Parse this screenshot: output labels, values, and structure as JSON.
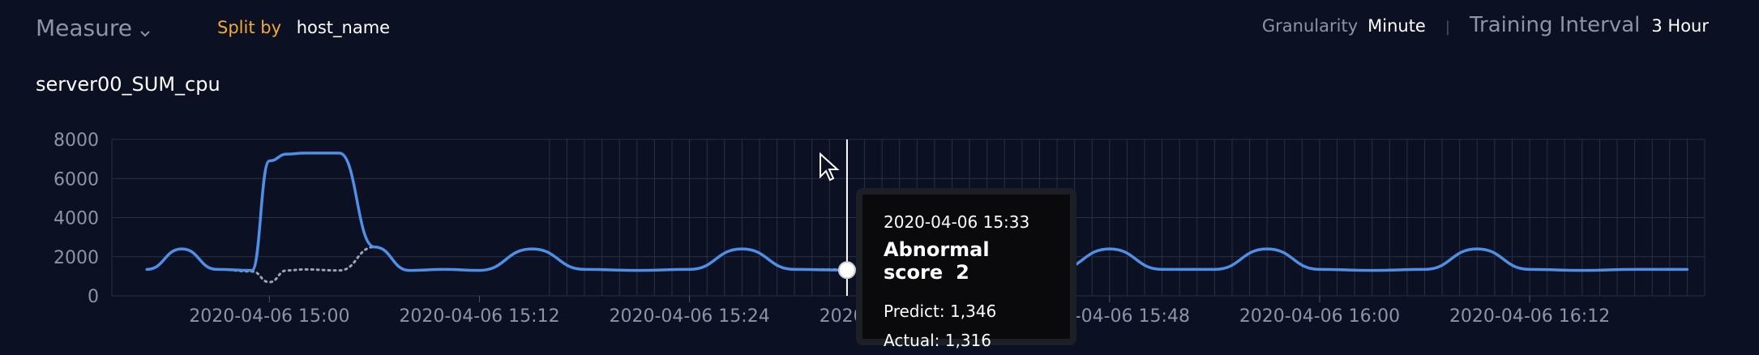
{
  "header": {
    "measure_label": "Measure",
    "split_by_label": "Split by",
    "split_by_value": "host_name",
    "granularity_label": "Granularity",
    "granularity_value": "Minute",
    "training_interval_label": "Training Interval",
    "training_interval_value": "3 Hour"
  },
  "chart_title": "server00_SUM_cpu",
  "tooltip": {
    "time": "2020-04-06 15:33",
    "abnormal_label": "Abnormal score",
    "abnormal_value": "2",
    "predict_label": "Predict: 1,346",
    "actual_label": "Actual: 1,316"
  },
  "colors": {
    "accent": "#f2a83b",
    "actual_line": "#4f8fe6",
    "predict_line": "#9aa3b8",
    "grid": "#2a3042"
  },
  "chart_data": {
    "type": "line",
    "title": "server00_SUM_cpu",
    "ylim": [
      0,
      8000
    ],
    "y_ticks": [
      0,
      2000,
      4000,
      6000,
      8000
    ],
    "x_tick_labels": [
      "2020-04-06 15:00",
      "2020-04-06 15:12",
      "2020-04-06 15:24",
      "2020-04-06 15:36",
      "2020-04-06 15:48",
      "2020-04-06 16:00",
      "2020-04-06 16:12"
    ],
    "grid": true,
    "series": [
      {
        "name": "Actual",
        "x": [
          "2020-04-06 14:53",
          "2020-04-06 14:55",
          "2020-04-06 14:57",
          "2020-04-06 14:59",
          "2020-04-06 15:00",
          "2020-04-06 15:01",
          "2020-04-06 15:02",
          "2020-04-06 15:04",
          "2020-04-06 15:06",
          "2020-04-06 15:08",
          "2020-04-06 15:10",
          "2020-04-06 15:12",
          "2020-04-06 15:15",
          "2020-04-06 15:18",
          "2020-04-06 15:21",
          "2020-04-06 15:24",
          "2020-04-06 15:27",
          "2020-04-06 15:30",
          "2020-04-06 15:33",
          "2020-04-06 15:36",
          "2020-04-06 15:39",
          "2020-04-06 15:42",
          "2020-04-06 15:45",
          "2020-04-06 15:48",
          "2020-04-06 15:51",
          "2020-04-06 15:54",
          "2020-04-06 15:57",
          "2020-04-06 16:00",
          "2020-04-06 16:03",
          "2020-04-06 16:06",
          "2020-04-06 16:09",
          "2020-04-06 16:12",
          "2020-04-06 16:15",
          "2020-04-06 16:18",
          "2020-04-06 16:21"
        ],
        "values": [
          1350,
          2400,
          1350,
          1300,
          6900,
          7250,
          7300,
          7300,
          2500,
          1300,
          1350,
          1300,
          2400,
          1350,
          1300,
          1350,
          2400,
          1350,
          1316,
          2400,
          1350,
          1300,
          1350,
          2400,
          1350,
          1350,
          2400,
          1350,
          1300,
          1350,
          2400,
          1350,
          1300,
          1350,
          1350
        ]
      },
      {
        "name": "Predict",
        "x": [
          "2020-04-06 14:53",
          "2020-04-06 14:55",
          "2020-04-06 14:57",
          "2020-04-06 14:59",
          "2020-04-06 15:00",
          "2020-04-06 15:01",
          "2020-04-06 15:02",
          "2020-04-06 15:04",
          "2020-04-06 15:06",
          "2020-04-06 15:08",
          "2020-04-06 15:10",
          "2020-04-06 15:12",
          "2020-04-06 15:15",
          "2020-04-06 15:18",
          "2020-04-06 15:21",
          "2020-04-06 15:24",
          "2020-04-06 15:27",
          "2020-04-06 15:30",
          "2020-04-06 15:33",
          "2020-04-06 15:36",
          "2020-04-06 15:39",
          "2020-04-06 15:42",
          "2020-04-06 15:45",
          "2020-04-06 15:48",
          "2020-04-06 15:51",
          "2020-04-06 15:54",
          "2020-04-06 15:57",
          "2020-04-06 16:00",
          "2020-04-06 16:03",
          "2020-04-06 16:06",
          "2020-04-06 16:09",
          "2020-04-06 16:12",
          "2020-04-06 16:15",
          "2020-04-06 16:18",
          "2020-04-06 16:21"
        ],
        "values": [
          1350,
          2400,
          1350,
          1250,
          700,
          1300,
          1350,
          1300,
          2500,
          1300,
          1350,
          1300,
          2400,
          1350,
          1300,
          1350,
          2400,
          1350,
          1346,
          2400,
          1350,
          1300,
          1350,
          2400,
          1350,
          1350,
          2400,
          1350,
          1300,
          1350,
          2400,
          1350,
          1300,
          1350,
          1350
        ]
      }
    ],
    "hover_x": "2020-04-06 15:33"
  }
}
